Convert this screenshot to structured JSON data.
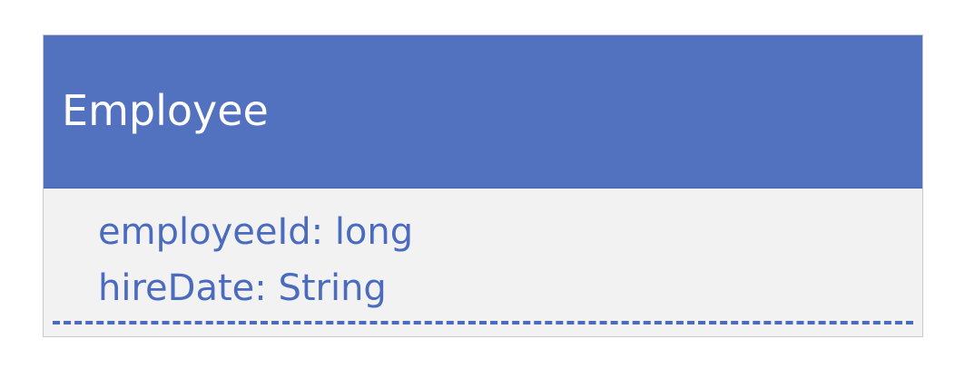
{
  "uml_class": {
    "name": "Employee",
    "attributes": [
      "employeeId: long",
      "hireDate: String"
    ]
  },
  "colors": {
    "header_fill": "#5272bf",
    "body_fill": "#f2f2f2",
    "attribute_text": "#4a6bbe",
    "header_text": "#ffffff"
  }
}
